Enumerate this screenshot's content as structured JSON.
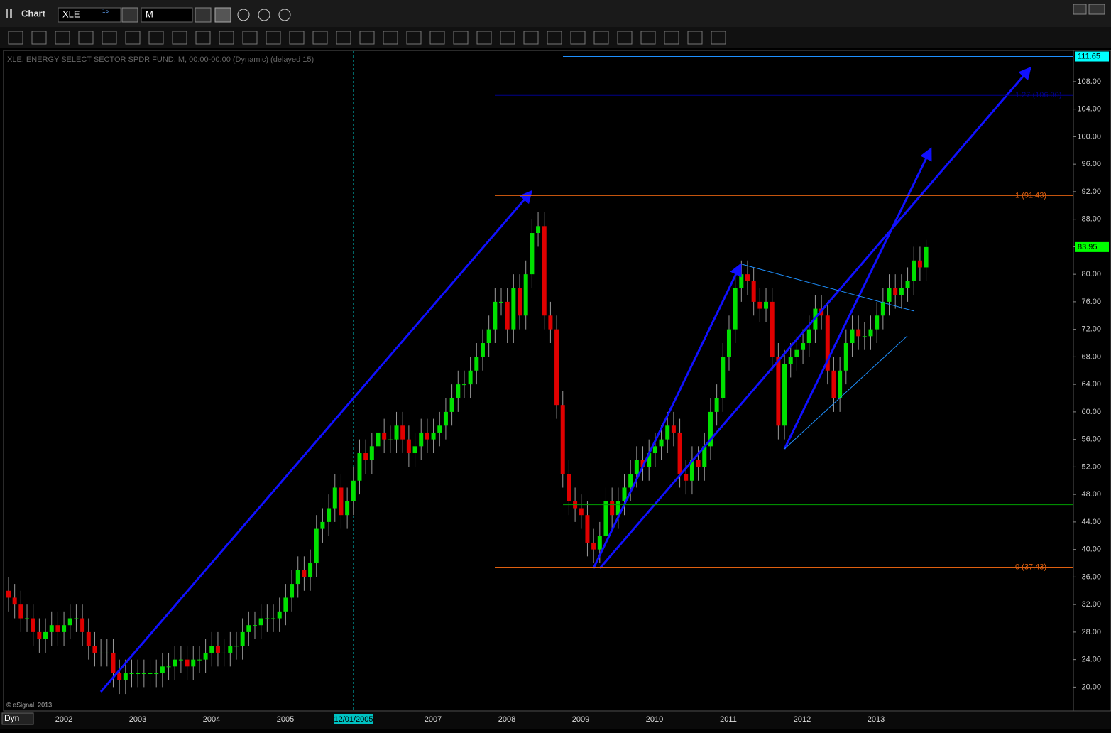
{
  "header": {
    "title": "Chart",
    "symbol": "XLE",
    "symbol_badge": "15",
    "interval": "M"
  },
  "chart_data": {
    "type": "candlestick",
    "subtitle": "XLE, ENERGY SELECT SECTOR SPDR FUND, M, 00:00-00:00 (Dynamic) (delayed 15)",
    "credit": "© eSignal, 2013",
    "mode": "Dyn",
    "cursor_label": "12/01/2005",
    "up_color": "#00e000",
    "down_color": "#e00000",
    "open": [
      34,
      33,
      32,
      30,
      30,
      28,
      27,
      28,
      29,
      28,
      29,
      30,
      30,
      28,
      26,
      25,
      25,
      25,
      22,
      21,
      22,
      22,
      22,
      22,
      22,
      22,
      23,
      23,
      24,
      24,
      23,
      24,
      24,
      25,
      26,
      25,
      25,
      26,
      26,
      28,
      29,
      29,
      30,
      30,
      30,
      31,
      33,
      35,
      37,
      36,
      38,
      43,
      44,
      46,
      49,
      45,
      47,
      50,
      54,
      53,
      55,
      57,
      56,
      56,
      58,
      56,
      54,
      55,
      57,
      56,
      57,
      58,
      60,
      62,
      64,
      64,
      66,
      68,
      70,
      72,
      76,
      76,
      72,
      78,
      74,
      80,
      86,
      87,
      74,
      72,
      61,
      51,
      47,
      46,
      45,
      41,
      40,
      42,
      47,
      45,
      47,
      49,
      51,
      53,
      52,
      54,
      55,
      56,
      58,
      57,
      51,
      50,
      53,
      52,
      55,
      60,
      62,
      68,
      72,
      78,
      80,
      79,
      76,
      75,
      76,
      68,
      58,
      67,
      68,
      69,
      70,
      72,
      75,
      74,
      66,
      62,
      66,
      70,
      72,
      71,
      71,
      72,
      74,
      76,
      78,
      77,
      78,
      79,
      82,
      81
    ],
    "high": [
      36,
      35,
      34,
      32,
      32,
      30,
      30,
      31,
      31,
      31,
      32,
      32,
      32,
      30,
      28,
      27,
      27,
      27,
      24,
      24,
      24,
      24,
      24,
      24,
      24,
      25,
      25,
      26,
      26,
      26,
      26,
      26,
      27,
      28,
      28,
      27,
      28,
      28,
      30,
      31,
      31,
      32,
      32,
      32,
      33,
      35,
      37,
      39,
      39,
      40,
      45,
      46,
      48,
      51,
      51,
      49,
      52,
      56,
      56,
      57,
      59,
      59,
      58,
      60,
      60,
      58,
      57,
      59,
      59,
      59,
      60,
      62,
      64,
      66,
      66,
      68,
      70,
      72,
      74,
      78,
      78,
      78,
      80,
      80,
      82,
      88,
      89,
      89,
      76,
      74,
      63,
      53,
      49,
      48,
      47,
      43,
      44,
      49,
      49,
      49,
      51,
      53,
      55,
      55,
      56,
      57,
      58,
      60,
      60,
      59,
      53,
      55,
      55,
      57,
      62,
      64,
      70,
      74,
      80,
      82,
      82,
      81,
      78,
      78,
      78,
      70,
      69,
      70,
      71,
      72,
      74,
      77,
      77,
      76,
      68,
      68,
      72,
      74,
      74,
      73,
      74,
      76,
      78,
      80,
      80,
      80,
      81,
      84,
      84,
      85
    ],
    "low": [
      31,
      30,
      28,
      28,
      26,
      25,
      25,
      26,
      26,
      26,
      27,
      28,
      26,
      24,
      23,
      23,
      23,
      20,
      19,
      19,
      20,
      20,
      20,
      20,
      20,
      20,
      21,
      21,
      22,
      21,
      21,
      22,
      22,
      23,
      23,
      23,
      23,
      24,
      24,
      26,
      27,
      27,
      28,
      28,
      28,
      29,
      31,
      33,
      34,
      34,
      36,
      41,
      42,
      44,
      43,
      43,
      45,
      48,
      51,
      51,
      53,
      54,
      54,
      54,
      54,
      52,
      52,
      53,
      54,
      54,
      55,
      56,
      58,
      60,
      62,
      62,
      64,
      66,
      68,
      70,
      74,
      70,
      70,
      72,
      72,
      78,
      84,
      72,
      70,
      59,
      49,
      45,
      44,
      43,
      39,
      38,
      38,
      40,
      43,
      43,
      45,
      47,
      49,
      50,
      50,
      52,
      53,
      54,
      55,
      49,
      48,
      48,
      50,
      50,
      53,
      58,
      60,
      66,
      70,
      76,
      77,
      74,
      73,
      73,
      66,
      56,
      56,
      65,
      66,
      67,
      68,
      70,
      72,
      64,
      60,
      60,
      64,
      68,
      69,
      69,
      69,
      70,
      72,
      74,
      75,
      75,
      76,
      77,
      79,
      79
    ],
    "close": [
      33,
      32,
      30,
      30,
      28,
      27,
      28,
      29,
      28,
      29,
      30,
      30,
      28,
      26,
      25,
      25,
      25,
      22,
      21,
      22,
      22,
      22,
      22,
      22,
      22,
      23,
      23,
      24,
      24,
      23,
      24,
      24,
      25,
      26,
      25,
      25,
      26,
      26,
      28,
      29,
      29,
      30,
      30,
      30,
      31,
      33,
      35,
      37,
      36,
      38,
      43,
      44,
      46,
      49,
      45,
      47,
      50,
      54,
      53,
      55,
      57,
      56,
      56,
      58,
      56,
      54,
      55,
      57,
      56,
      57,
      58,
      60,
      62,
      64,
      64,
      66,
      68,
      70,
      72,
      76,
      76,
      72,
      78,
      74,
      80,
      86,
      87,
      74,
      72,
      61,
      51,
      47,
      46,
      45,
      41,
      40,
      42,
      47,
      45,
      47,
      49,
      51,
      53,
      52,
      54,
      55,
      56,
      58,
      57,
      51,
      50,
      53,
      52,
      55,
      60,
      62,
      68,
      72,
      78,
      80,
      79,
      76,
      75,
      76,
      68,
      58,
      67,
      68,
      69,
      70,
      72,
      75,
      74,
      66,
      62,
      66,
      70,
      72,
      71,
      71,
      72,
      74,
      76,
      78,
      77,
      78,
      79,
      82,
      81,
      83.95
    ],
    "xticks": [
      "2002",
      "2003",
      "2004",
      "2005",
      "2007",
      "2008",
      "2009",
      "2010",
      "2011",
      "2012",
      "2013"
    ],
    "ylim": [
      16.5,
      112.5
    ],
    "yticks": [
      {
        "value": 20,
        "label": "20.00"
      },
      {
        "value": 24,
        "label": "24.00"
      },
      {
        "value": 28,
        "label": "28.00"
      },
      {
        "value": 32,
        "label": "32.00"
      },
      {
        "value": 36,
        "label": "36.00"
      },
      {
        "value": 40,
        "label": "40.00"
      },
      {
        "value": 44,
        "label": "44.00"
      },
      {
        "value": 48,
        "label": "48.00"
      },
      {
        "value": 52,
        "label": "52.00"
      },
      {
        "value": 56,
        "label": "56.00"
      },
      {
        "value": 60,
        "label": "60.00"
      },
      {
        "value": 64,
        "label": "64.00"
      },
      {
        "value": 68,
        "label": "68.00"
      },
      {
        "value": 72,
        "label": "72.00"
      },
      {
        "value": 76,
        "label": "76.00"
      },
      {
        "value": 80,
        "label": "80.00"
      },
      {
        "value": 84,
        "label": "84.00"
      },
      {
        "value": 88,
        "label": "88.00"
      },
      {
        "value": 92,
        "label": "92.00"
      },
      {
        "value": 96,
        "label": "96.00"
      },
      {
        "value": 100,
        "label": "100.00"
      },
      {
        "value": 104,
        "label": "104.00"
      },
      {
        "value": 108,
        "label": "108.00"
      }
    ],
    "levels": [
      {
        "value": 111.65,
        "color": "#1e90ff"
      },
      {
        "value": 106,
        "label": "1.27 (106.00)",
        "color": "#00008b"
      },
      {
        "value": 91.43,
        "label": "1 (91.43)",
        "color": "#e06010"
      },
      {
        "value": 46.5,
        "color": "#00a000"
      },
      {
        "value": 37.43,
        "label": "0 (37.43)",
        "color": "#e06010"
      }
    ],
    "price_tags": [
      {
        "value": 111.65,
        "color": "#00ffff"
      },
      {
        "value": 83.95,
        "color": "#00ff00"
      }
    ]
  }
}
